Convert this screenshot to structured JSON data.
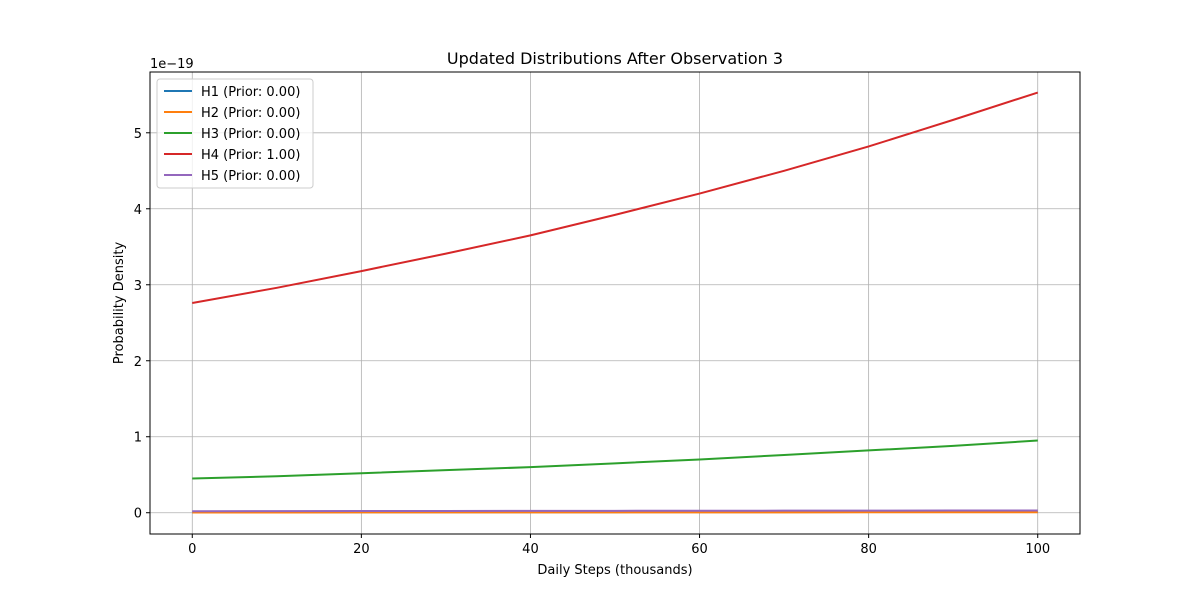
{
  "chart_data": {
    "type": "line",
    "title": "Updated Distributions After Observation 3",
    "xlabel": "Daily Steps (thousands)",
    "ylabel": "Probability Density",
    "y_offset_text": "1e−19",
    "xlim": [
      -5,
      105
    ],
    "ylim": [
      -0.28,
      5.8
    ],
    "xticks": [
      0,
      20,
      40,
      60,
      80,
      100
    ],
    "xtick_labels": [
      "0",
      "20",
      "40",
      "60",
      "80",
      "100"
    ],
    "yticks": [
      0,
      1,
      2,
      3,
      4,
      5
    ],
    "ytick_labels": [
      "0",
      "1",
      "2",
      "3",
      "4",
      "5"
    ],
    "y_units_note": "values in units of 1e-19",
    "grid": true,
    "legend_position": "top-left",
    "x": [
      0,
      10,
      20,
      30,
      40,
      50,
      60,
      70,
      80,
      90,
      100
    ],
    "series": [
      {
        "name": "H1 (Prior: 0.00)",
        "color": "#1f77b4",
        "values": [
          0.005,
          0.005,
          0.006,
          0.006,
          0.007,
          0.007,
          0.008,
          0.008,
          0.009,
          0.009,
          0.01
        ]
      },
      {
        "name": "H2 (Prior: 0.00)",
        "color": "#ff7f0e",
        "values": [
          0.003,
          0.003,
          0.004,
          0.004,
          0.004,
          0.005,
          0.005,
          0.005,
          0.006,
          0.006,
          0.006
        ]
      },
      {
        "name": "H3 (Prior: 0.00)",
        "color": "#2ca02c",
        "values": [
          0.45,
          0.48,
          0.52,
          0.56,
          0.6,
          0.65,
          0.7,
          0.76,
          0.82,
          0.88,
          0.95
        ]
      },
      {
        "name": "H4 (Prior: 1.00)",
        "color": "#d62728",
        "values": [
          2.76,
          2.96,
          3.18,
          3.41,
          3.65,
          3.92,
          4.2,
          4.5,
          4.82,
          5.17,
          5.53
        ]
      },
      {
        "name": "H5 (Prior: 0.00)",
        "color": "#9467bd",
        "values": [
          0.02,
          0.021,
          0.022,
          0.023,
          0.024,
          0.025,
          0.026,
          0.027,
          0.028,
          0.029,
          0.03
        ]
      }
    ]
  }
}
